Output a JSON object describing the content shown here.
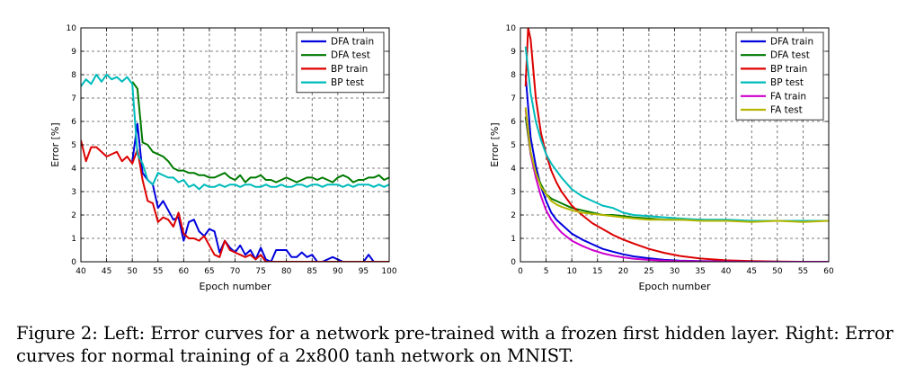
{
  "chart_data": [
    {
      "type": "line",
      "xlabel": "Epoch number",
      "ylabel": "Error [%]",
      "xlim": [
        40,
        100
      ],
      "ylim": [
        0,
        10
      ],
      "xticks": [
        40,
        45,
        50,
        55,
        60,
        65,
        70,
        75,
        80,
        85,
        90,
        95,
        100
      ],
      "yticks": [
        0,
        1,
        2,
        3,
        4,
        5,
        6,
        7,
        8,
        9,
        10
      ],
      "grid": true,
      "legend_position": "top-right",
      "series": [
        {
          "name": "DFA train",
          "color": "#0000dd",
          "x": [
            50,
            51,
            52,
            53,
            54,
            55,
            56,
            57,
            58,
            59,
            60,
            61,
            62,
            63,
            64,
            65,
            66,
            67,
            68,
            69,
            70,
            71,
            72,
            73,
            74,
            75,
            76,
            77,
            78,
            79,
            80,
            81,
            82,
            83,
            84,
            85,
            86,
            87,
            88,
            89,
            90,
            91,
            92,
            93,
            94,
            95,
            96,
            97,
            98,
            99,
            100
          ],
          "y": [
            4.3,
            5.9,
            3.8,
            3.5,
            3.3,
            2.3,
            2.6,
            2.2,
            1.8,
            1.9,
            0.9,
            1.7,
            1.8,
            1.3,
            1.1,
            1.4,
            1.3,
            0.4,
            0.9,
            0.6,
            0.4,
            0.7,
            0.3,
            0.5,
            0.1,
            0.6,
            0.1,
            0.0,
            0.5,
            0.5,
            0.5,
            0.2,
            0.2,
            0.4,
            0.2,
            0.3,
            0.0,
            0.0,
            0.1,
            0.2,
            0.1,
            0.0,
            0.0,
            0.0,
            0.0,
            0.0,
            0.3,
            0.0,
            0.0,
            0.0,
            0.0
          ]
        },
        {
          "name": "DFA test",
          "color": "#007a00",
          "x": [
            50,
            51,
            52,
            53,
            54,
            55,
            56,
            57,
            58,
            59,
            60,
            61,
            62,
            63,
            64,
            65,
            66,
            67,
            68,
            69,
            70,
            71,
            72,
            73,
            74,
            75,
            76,
            77,
            78,
            79,
            80,
            81,
            82,
            83,
            84,
            85,
            86,
            87,
            88,
            89,
            90,
            91,
            92,
            93,
            94,
            95,
            96,
            97,
            98,
            99,
            100
          ],
          "y": [
            7.7,
            7.4,
            5.1,
            5.0,
            4.7,
            4.6,
            4.5,
            4.3,
            4.0,
            3.9,
            3.9,
            3.8,
            3.8,
            3.7,
            3.7,
            3.6,
            3.6,
            3.7,
            3.8,
            3.6,
            3.5,
            3.7,
            3.4,
            3.6,
            3.6,
            3.7,
            3.5,
            3.5,
            3.4,
            3.5,
            3.6,
            3.5,
            3.4,
            3.5,
            3.6,
            3.6,
            3.5,
            3.6,
            3.5,
            3.4,
            3.6,
            3.7,
            3.6,
            3.4,
            3.5,
            3.5,
            3.6,
            3.6,
            3.7,
            3.5,
            3.6
          ]
        },
        {
          "name": "BP train",
          "color": "#dd0000",
          "x": [
            40,
            41,
            42,
            43,
            44,
            45,
            46,
            47,
            48,
            49,
            50,
            51,
            52,
            53,
            54,
            55,
            56,
            57,
            58,
            59,
            60,
            61,
            62,
            63,
            64,
            65,
            66,
            67,
            68,
            69,
            70,
            71,
            72,
            73,
            74,
            75,
            76,
            77,
            78,
            79,
            80,
            81,
            82,
            83,
            84,
            85,
            86,
            87,
            88,
            89,
            90,
            91,
            92,
            93,
            94,
            95,
            96,
            97,
            98,
            99,
            100
          ],
          "y": [
            5.2,
            4.3,
            4.9,
            4.9,
            4.7,
            4.5,
            4.6,
            4.7,
            4.3,
            4.5,
            4.2,
            4.8,
            3.5,
            2.6,
            2.5,
            1.7,
            1.9,
            1.8,
            1.5,
            2.1,
            1.2,
            1.0,
            1.0,
            0.9,
            1.1,
            0.7,
            0.3,
            0.2,
            0.9,
            0.5,
            0.4,
            0.3,
            0.2,
            0.3,
            0.1,
            0.3,
            0.0,
            0.0,
            0.0,
            0.0,
            0.0,
            0.0,
            0.0,
            0.0,
            0.0,
            0.0,
            0.0,
            0.0,
            0.0,
            0.0,
            0.0,
            0.0,
            0.0,
            0.0,
            0.0,
            0.0,
            0.0,
            0.0,
            0.0,
            0.0,
            0.0
          ]
        },
        {
          "name": "BP test",
          "color": "#00bbbb",
          "x": [
            40,
            41,
            42,
            43,
            44,
            45,
            46,
            47,
            48,
            49,
            50,
            51,
            52,
            53,
            54,
            55,
            56,
            57,
            58,
            59,
            60,
            61,
            62,
            63,
            64,
            65,
            66,
            67,
            68,
            69,
            70,
            71,
            72,
            73,
            74,
            75,
            76,
            77,
            78,
            79,
            80,
            81,
            82,
            83,
            84,
            85,
            86,
            87,
            88,
            89,
            90,
            91,
            92,
            93,
            94,
            95,
            96,
            97,
            98,
            99,
            100
          ],
          "y": [
            7.5,
            7.8,
            7.6,
            8.0,
            7.7,
            8.0,
            7.8,
            7.9,
            7.7,
            7.9,
            7.6,
            4.6,
            4.2,
            3.5,
            3.3,
            3.8,
            3.7,
            3.6,
            3.6,
            3.4,
            3.5,
            3.2,
            3.3,
            3.1,
            3.3,
            3.2,
            3.2,
            3.3,
            3.2,
            3.3,
            3.3,
            3.2,
            3.3,
            3.3,
            3.2,
            3.2,
            3.3,
            3.2,
            3.2,
            3.3,
            3.2,
            3.2,
            3.3,
            3.3,
            3.2,
            3.3,
            3.3,
            3.2,
            3.3,
            3.3,
            3.3,
            3.2,
            3.3,
            3.2,
            3.3,
            3.3,
            3.3,
            3.2,
            3.3,
            3.2,
            3.3
          ]
        }
      ]
    },
    {
      "type": "line",
      "xlabel": "Epoch number",
      "ylabel": "Error [%]",
      "xlim": [
        0,
        60
      ],
      "ylim": [
        0,
        10
      ],
      "xticks": [
        0,
        5,
        10,
        15,
        20,
        25,
        30,
        35,
        40,
        45,
        50,
        55,
        60
      ],
      "yticks": [
        0,
        1,
        2,
        3,
        4,
        5,
        6,
        7,
        8,
        9,
        10
      ],
      "grid": true,
      "legend_position": "top-right",
      "series": [
        {
          "name": "DFA train",
          "color": "#0000dd",
          "x": [
            1,
            2,
            3,
            4,
            5,
            6,
            7,
            8,
            10,
            12,
            14,
            16,
            18,
            20,
            22,
            25,
            28,
            31,
            35,
            40,
            45,
            50,
            55,
            60
          ],
          "y": [
            8.0,
            5.3,
            4.1,
            3.2,
            2.6,
            2.1,
            1.8,
            1.6,
            1.2,
            0.95,
            0.75,
            0.55,
            0.43,
            0.32,
            0.23,
            0.15,
            0.08,
            0.05,
            0.03,
            0.02,
            0.01,
            0.0,
            0.0,
            0.0
          ]
        },
        {
          "name": "DFA test",
          "color": "#007a00",
          "x": [
            1,
            2,
            3,
            4,
            5,
            6,
            7,
            8,
            10,
            12,
            14,
            16,
            18,
            20,
            22,
            25,
            28,
            31,
            35,
            40,
            45,
            50,
            55,
            60
          ],
          "y": [
            6.2,
            4.6,
            3.8,
            3.3,
            2.9,
            2.7,
            2.6,
            2.5,
            2.3,
            2.2,
            2.1,
            2.0,
            2.0,
            1.95,
            1.9,
            1.85,
            1.8,
            1.8,
            1.8,
            1.75,
            1.75,
            1.75,
            1.75,
            1.75
          ]
        },
        {
          "name": "BP train",
          "color": "#dd0000",
          "x": [
            1,
            1.5,
            2,
            3,
            4,
            5,
            6,
            7,
            8,
            10,
            12,
            14,
            16,
            18,
            20,
            22,
            25,
            28,
            31,
            35,
            40,
            45,
            50,
            55,
            60
          ],
          "y": [
            7.5,
            10.0,
            9.5,
            7.0,
            5.5,
            4.6,
            3.9,
            3.4,
            3.0,
            2.4,
            2.0,
            1.65,
            1.4,
            1.15,
            0.95,
            0.78,
            0.55,
            0.38,
            0.25,
            0.14,
            0.06,
            0.03,
            0.01,
            0.0,
            0.0
          ]
        },
        {
          "name": "BP test",
          "color": "#00bbbb",
          "x": [
            1,
            2,
            3,
            4,
            5,
            6,
            7,
            8,
            10,
            12,
            14,
            16,
            18,
            20,
            22,
            25,
            28,
            31,
            35,
            40,
            45,
            50,
            55,
            60
          ],
          "y": [
            9.2,
            7.2,
            6.0,
            5.2,
            4.6,
            4.2,
            3.9,
            3.6,
            3.1,
            2.8,
            2.6,
            2.4,
            2.3,
            2.1,
            2.0,
            1.95,
            1.9,
            1.85,
            1.8,
            1.8,
            1.75,
            1.75,
            1.75,
            1.75
          ]
        },
        {
          "name": "FA train",
          "color": "#cc00cc",
          "x": [
            1,
            2,
            3,
            4,
            5,
            6,
            7,
            8,
            10,
            12,
            14,
            16,
            18,
            20,
            22,
            25,
            28,
            31,
            35,
            40,
            45,
            50,
            55,
            60
          ],
          "y": [
            6.5,
            4.6,
            3.6,
            2.8,
            2.2,
            1.8,
            1.5,
            1.25,
            0.9,
            0.68,
            0.5,
            0.36,
            0.26,
            0.19,
            0.13,
            0.08,
            0.05,
            0.03,
            0.02,
            0.01,
            0.0,
            0.0,
            0.0,
            0.0
          ]
        },
        {
          "name": "FA test",
          "color": "#b5b500",
          "x": [
            1,
            2,
            3,
            4,
            5,
            6,
            7,
            8,
            10,
            12,
            14,
            16,
            18,
            20,
            22,
            25,
            28,
            31,
            35,
            40,
            45,
            50,
            55,
            60
          ],
          "y": [
            6.6,
            4.7,
            3.8,
            3.2,
            2.9,
            2.6,
            2.45,
            2.35,
            2.2,
            2.1,
            2.05,
            2.0,
            1.95,
            1.9,
            1.85,
            1.8,
            1.8,
            1.8,
            1.75,
            1.75,
            1.7,
            1.75,
            1.7,
            1.75
          ]
        }
      ]
    }
  ],
  "caption": {
    "line1": "Figure 2: Left: Error curves for a network pre-trained with a frozen first hidden layer. Right: Error",
    "line2": "curves for normal training of a 2x800 tanh network on MNIST."
  }
}
